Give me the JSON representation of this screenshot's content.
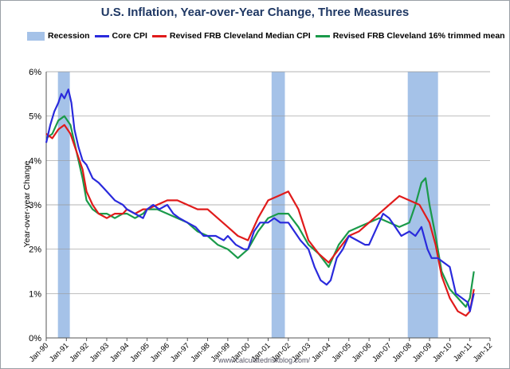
{
  "title": "U.S. Inflation, Year-over-Year Change, Three Measures",
  "watermark": "www.calculatedriskblog.com/",
  "chart_data": {
    "type": "line",
    "ylabel": "Year-over-year Change",
    "xlabel": "",
    "ylim": [
      0,
      6
    ],
    "yticks": [
      "0%",
      "1%",
      "2%",
      "3%",
      "4%",
      "5%",
      "6%"
    ],
    "xlim": [
      1990.0,
      2012.0
    ],
    "xticks": [
      "Jan-90",
      "Jan-91",
      "Jan-92",
      "Jan-93",
      "Jan-94",
      "Jan-95",
      "Jan-96",
      "Jan-97",
      "Jan-98",
      "Jan-99",
      "Jan-00",
      "Jan-01",
      "Jan-02",
      "Jan-03",
      "Jan-04",
      "Jan-05",
      "Jan-06",
      "Jan-07",
      "Jan-08",
      "Jan-09",
      "Jan-10",
      "Jan-11",
      "Jan-12"
    ],
    "grid": true,
    "legend_position": "top",
    "recessions": [
      {
        "start": 1990.58,
        "end": 1991.17
      },
      {
        "start": 2001.17,
        "end": 2001.83
      },
      {
        "start": 2007.92,
        "end": 2009.42
      }
    ],
    "series": [
      {
        "name": "Recession",
        "color": "#a5c2e8",
        "kind": "band"
      },
      {
        "name": "Core CPI",
        "color": "#2a2adc",
        "x": [
          1990.0,
          1990.2,
          1990.4,
          1990.6,
          1990.75,
          1990.9,
          1991.0,
          1991.1,
          1991.25,
          1991.4,
          1991.6,
          1991.8,
          1992.0,
          1992.3,
          1992.6,
          1993.0,
          1993.4,
          1993.8,
          1994.0,
          1994.4,
          1994.8,
          1995.0,
          1995.3,
          1995.6,
          1996.0,
          1996.3,
          1996.6,
          1997.0,
          1997.4,
          1997.8,
          1998.0,
          1998.4,
          1998.8,
          1999.0,
          1999.4,
          1999.8,
          2000.0,
          2000.3,
          2000.6,
          2001.0,
          2001.3,
          2001.6,
          2002.0,
          2002.3,
          2002.6,
          2003.0,
          2003.3,
          2003.6,
          2003.9,
          2004.1,
          2004.4,
          2004.7,
          2005.0,
          2005.4,
          2005.8,
          2006.0,
          2006.4,
          2006.7,
          2007.0,
          2007.3,
          2007.6,
          2008.0,
          2008.3,
          2008.6,
          2008.9,
          2009.1,
          2009.4,
          2009.7,
          2010.0,
          2010.3,
          2010.6,
          2010.9,
          2011.0,
          2011.2
        ],
        "values": [
          4.4,
          4.8,
          5.1,
          5.3,
          5.5,
          5.4,
          5.5,
          5.6,
          5.3,
          4.7,
          4.3,
          4.0,
          3.9,
          3.6,
          3.5,
          3.3,
          3.1,
          3.0,
          2.9,
          2.8,
          2.7,
          2.9,
          3.0,
          2.9,
          3.0,
          2.8,
          2.7,
          2.6,
          2.5,
          2.3,
          2.3,
          2.3,
          2.2,
          2.3,
          2.1,
          2.0,
          2.0,
          2.4,
          2.6,
          2.6,
          2.7,
          2.6,
          2.6,
          2.4,
          2.2,
          2.0,
          1.6,
          1.3,
          1.2,
          1.3,
          1.8,
          2.0,
          2.3,
          2.2,
          2.1,
          2.1,
          2.5,
          2.8,
          2.7,
          2.5,
          2.3,
          2.4,
          2.3,
          2.5,
          2.0,
          1.8,
          1.8,
          1.7,
          1.6,
          1.0,
          0.9,
          0.8,
          0.6,
          1.0
        ]
      },
      {
        "name": "Revised FRB Cleveland Median CPI",
        "color": "#e01b1b",
        "x": [
          1990.0,
          1990.3,
          1990.6,
          1990.9,
          1991.2,
          1991.5,
          1991.8,
          1992.0,
          1992.3,
          1992.6,
          1993.0,
          1993.4,
          1993.8,
          1994.0,
          1994.4,
          1994.8,
          1995.0,
          1995.5,
          1996.0,
          1996.5,
          1997.0,
          1997.5,
          1998.0,
          1998.5,
          1999.0,
          1999.5,
          2000.0,
          2000.5,
          2001.0,
          2001.5,
          2002.0,
          2002.5,
          2003.0,
          2003.5,
          2004.0,
          2004.5,
          2005.0,
          2005.5,
          2006.0,
          2006.5,
          2007.0,
          2007.5,
          2008.0,
          2008.5,
          2009.0,
          2009.3,
          2009.6,
          2010.0,
          2010.4,
          2010.8,
          2011.0,
          2011.2
        ],
        "values": [
          4.6,
          4.5,
          4.7,
          4.8,
          4.6,
          4.2,
          3.8,
          3.3,
          3.0,
          2.8,
          2.7,
          2.8,
          2.8,
          2.9,
          2.8,
          2.9,
          2.9,
          3.0,
          3.1,
          3.1,
          3.0,
          2.9,
          2.9,
          2.7,
          2.5,
          2.3,
          2.2,
          2.7,
          3.1,
          3.2,
          3.3,
          2.9,
          2.2,
          1.9,
          1.7,
          2.0,
          2.3,
          2.4,
          2.6,
          2.8,
          3.0,
          3.2,
          3.1,
          3.0,
          2.6,
          2.1,
          1.4,
          0.9,
          0.6,
          0.5,
          0.6,
          1.1
        ]
      },
      {
        "name": "Revised FRB Cleveland 16% trimmed mean",
        "color": "#1a9a4a",
        "x": [
          1990.0,
          1990.3,
          1990.6,
          1990.9,
          1991.2,
          1991.5,
          1991.8,
          1992.0,
          1992.3,
          1992.6,
          1993.0,
          1993.4,
          1993.8,
          1994.0,
          1994.4,
          1994.8,
          1995.0,
          1995.5,
          1996.0,
          1996.5,
          1997.0,
          1997.5,
          1998.0,
          1998.5,
          1999.0,
          1999.5,
          2000.0,
          2000.5,
          2001.0,
          2001.5,
          2002.0,
          2002.5,
          2003.0,
          2003.5,
          2004.0,
          2004.5,
          2005.0,
          2005.5,
          2006.0,
          2006.5,
          2007.0,
          2007.5,
          2008.0,
          2008.3,
          2008.6,
          2008.8,
          2009.0,
          2009.3,
          2009.6,
          2010.0,
          2010.4,
          2010.8,
          2011.0,
          2011.2
        ],
        "values": [
          4.5,
          4.6,
          4.9,
          5.0,
          4.8,
          4.2,
          3.6,
          3.1,
          2.9,
          2.8,
          2.8,
          2.7,
          2.8,
          2.8,
          2.7,
          2.8,
          2.9,
          2.9,
          2.8,
          2.7,
          2.6,
          2.4,
          2.3,
          2.1,
          2.0,
          1.8,
          2.0,
          2.4,
          2.7,
          2.8,
          2.8,
          2.5,
          2.1,
          1.9,
          1.6,
          2.1,
          2.4,
          2.5,
          2.6,
          2.7,
          2.6,
          2.5,
          2.6,
          3.0,
          3.5,
          3.6,
          3.0,
          2.3,
          1.5,
          1.1,
          0.9,
          0.7,
          0.9,
          1.5
        ]
      }
    ]
  }
}
